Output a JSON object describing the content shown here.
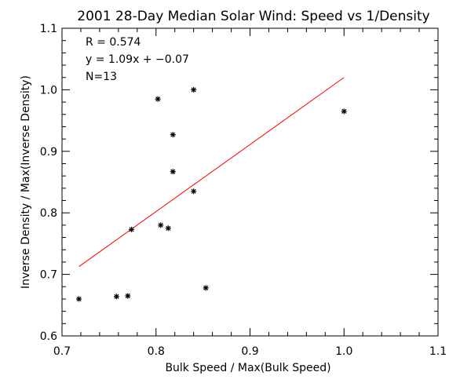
{
  "chart_data": {
    "type": "scatter",
    "title": "2001 28-Day Median Solar Wind: Speed vs 1/Density",
    "xlabel": "Bulk Speed / Max(Bulk Speed)",
    "ylabel": "Inverse Density / Max(Inverse Density)",
    "xlim": [
      0.7,
      1.1
    ],
    "ylim": [
      0.6,
      1.1
    ],
    "xticks": [
      0.7,
      0.8,
      0.9,
      1.0,
      1.1
    ],
    "yticks": [
      0.6,
      0.7,
      0.8,
      0.9,
      1.0,
      1.1
    ],
    "xtick_labels": [
      "0.7",
      "0.8",
      "0.9",
      "1.0",
      "1.1"
    ],
    "ytick_labels": [
      "0.6",
      "0.7",
      "0.8",
      "0.9",
      "1.0",
      "1.1"
    ],
    "annotations": [
      "R = 0.574",
      "y = 1.09x + −0.07",
      "N=13"
    ],
    "marker": "*",
    "points": [
      {
        "x": 0.718,
        "y": 0.66
      },
      {
        "x": 0.758,
        "y": 0.664
      },
      {
        "x": 0.77,
        "y": 0.665
      },
      {
        "x": 0.774,
        "y": 0.773
      },
      {
        "x": 0.802,
        "y": 0.985
      },
      {
        "x": 0.805,
        "y": 0.78
      },
      {
        "x": 0.813,
        "y": 0.775
      },
      {
        "x": 0.818,
        "y": 0.927
      },
      {
        "x": 0.818,
        "y": 0.867
      },
      {
        "x": 0.84,
        "y": 1.0
      },
      {
        "x": 0.84,
        "y": 0.835
      },
      {
        "x": 0.853,
        "y": 0.678
      },
      {
        "x": 1.0,
        "y": 0.965
      }
    ],
    "fit": {
      "slope": 1.09,
      "intercept": -0.07,
      "x_range": [
        0.718,
        1.0
      ],
      "color": "#ff0000"
    }
  }
}
